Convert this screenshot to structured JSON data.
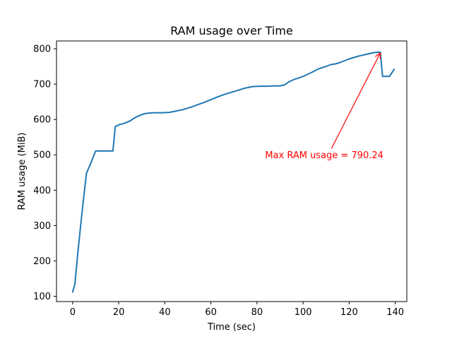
{
  "chart_data": {
    "type": "line",
    "title": "RAM usage over Time",
    "xlabel": "Time (sec)",
    "ylabel": "RAM usage (MiB)",
    "xlim": [
      -7,
      145
    ],
    "ylim": [
      85,
      822
    ],
    "x_ticks": [
      0,
      20,
      40,
      60,
      80,
      100,
      120,
      140
    ],
    "y_ticks": [
      100,
      200,
      300,
      400,
      500,
      600,
      700,
      800
    ],
    "grid": false,
    "colors": {
      "line": "#1f77b4",
      "annotation": "#ff0000"
    },
    "series": [
      {
        "x": [
          0,
          1,
          2,
          4,
          6,
          8,
          9,
          10,
          11,
          12,
          14,
          16,
          17.5,
          18.5,
          19.5,
          20.5,
          22,
          23.5,
          25,
          26.5,
          28,
          29.5,
          31,
          33,
          36,
          39,
          42,
          45,
          48,
          51,
          54,
          57,
          60,
          63,
          66,
          69,
          72,
          75,
          78,
          81,
          84,
          87,
          90,
          92,
          94,
          96,
          98,
          100,
          102,
          104,
          106,
          108,
          110,
          112,
          114,
          116,
          118,
          120,
          122,
          124,
          126,
          128,
          130,
          132,
          133.5,
          134.5,
          135.5,
          137.5,
          139.5
        ],
        "y": [
          112,
          135,
          207,
          333,
          448,
          478,
          495,
          511,
          511,
          511,
          511,
          511,
          511,
          580,
          583,
          586,
          588,
          592,
          596,
          603,
          608,
          612,
          616,
          618,
          619,
          619,
          620,
          624,
          628,
          634,
          641,
          648,
          656,
          664,
          671,
          677,
          683,
          689,
          693,
          694,
          694,
          695,
          695,
          698,
          707,
          713,
          717,
          722,
          728,
          734,
          741,
          746,
          750,
          755,
          757,
          761,
          766,
          771,
          775,
          779,
          782,
          785,
          788,
          790,
          790.24,
          722,
          722,
          722,
          742
        ]
      }
    ],
    "annotations": [
      {
        "text": "Max RAM usage = 790.24",
        "xy": [
          133.5,
          790.24
        ],
        "xytext": [
          83.5,
          490
        ]
      }
    ]
  }
}
